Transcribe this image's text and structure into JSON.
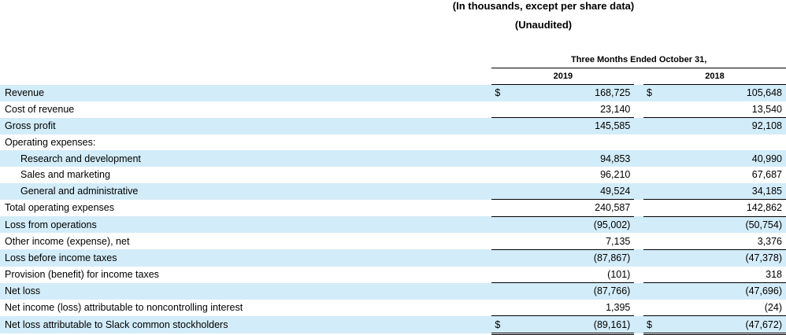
{
  "header": {
    "title": "(In thousands, except per share data)",
    "subtitle": "(Unaudited)"
  },
  "table": {
    "period": "Three Months Ended October 31,",
    "years": [
      "2019",
      "2018"
    ],
    "rows": [
      {
        "label": "Revenue",
        "currency": "$",
        "values": [
          "168,725",
          "105,648"
        ]
      },
      {
        "label": "Cost of revenue",
        "values": [
          "23,140",
          "13,540"
        ]
      },
      {
        "label": "Gross profit",
        "values": [
          "145,585",
          "92,108"
        ]
      },
      {
        "label": "Operating expenses:"
      },
      {
        "label": "Research and development",
        "values": [
          "94,853",
          "40,990"
        ]
      },
      {
        "label": "Sales and marketing",
        "values": [
          "96,210",
          "67,687"
        ]
      },
      {
        "label": "General and administrative",
        "values": [
          "49,524",
          "34,185"
        ]
      },
      {
        "label": "Total operating expenses",
        "values": [
          "240,587",
          "142,862"
        ]
      },
      {
        "label": "Loss from operations",
        "values": [
          "(95,002)",
          "(50,754)"
        ]
      },
      {
        "label": "Other income (expense), net",
        "values": [
          "7,135",
          "3,376"
        ]
      },
      {
        "label": "Loss before income taxes",
        "values": [
          "(87,867)",
          "(47,378)"
        ]
      },
      {
        "label": "Provision (benefit) for income taxes",
        "values": [
          "(101)",
          "318"
        ]
      },
      {
        "label": "Net loss",
        "values": [
          "(87,766)",
          "(47,696)"
        ]
      },
      {
        "label": "Net income (loss) attributable to noncontrolling interest",
        "values": [
          "1,395",
          "(24)"
        ]
      },
      {
        "label": "Net loss attributable to Slack common stockholders",
        "currency": "$",
        "values": [
          "(89,161)",
          "(47,672)"
        ]
      }
    ]
  }
}
